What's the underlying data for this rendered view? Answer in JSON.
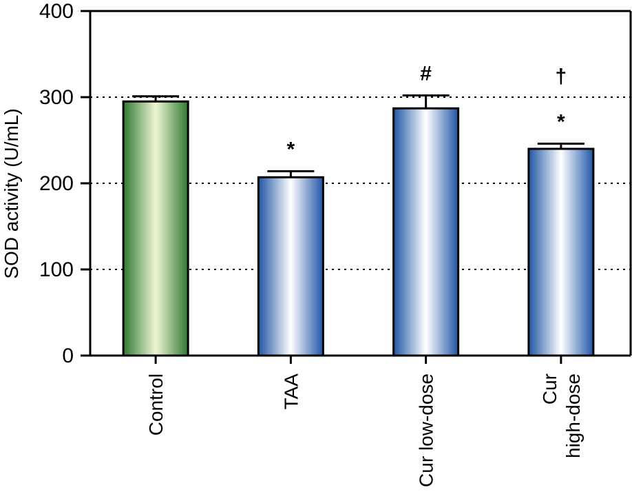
{
  "chart_data": {
    "type": "bar",
    "ylabel": "SOD activity (U/mL)",
    "ylim": [
      0,
      400
    ],
    "yticks": [
      0,
      100,
      200,
      300,
      400
    ],
    "grid": "dotted horizontal at 100, 200, 300",
    "categories": [
      {
        "label_lines": [
          "Control"
        ]
      },
      {
        "label_lines": [
          "TAA"
        ]
      },
      {
        "label_lines": [
          "Cur low-dose"
        ]
      },
      {
        "label_lines": [
          "Cur",
          "high-dose"
        ]
      }
    ],
    "values": [
      295,
      207,
      287,
      240
    ],
    "error": [
      6,
      7,
      15,
      6
    ],
    "annotations": [
      [],
      [
        "*"
      ],
      [
        "#"
      ],
      [
        "†",
        "*"
      ]
    ],
    "colors": {
      "control_dark": "#2f7a2f",
      "control_light": "#eef6d6",
      "treated_dark": "#1f56a6",
      "treated_light": "#ffffff",
      "outline": "#000000"
    }
  }
}
